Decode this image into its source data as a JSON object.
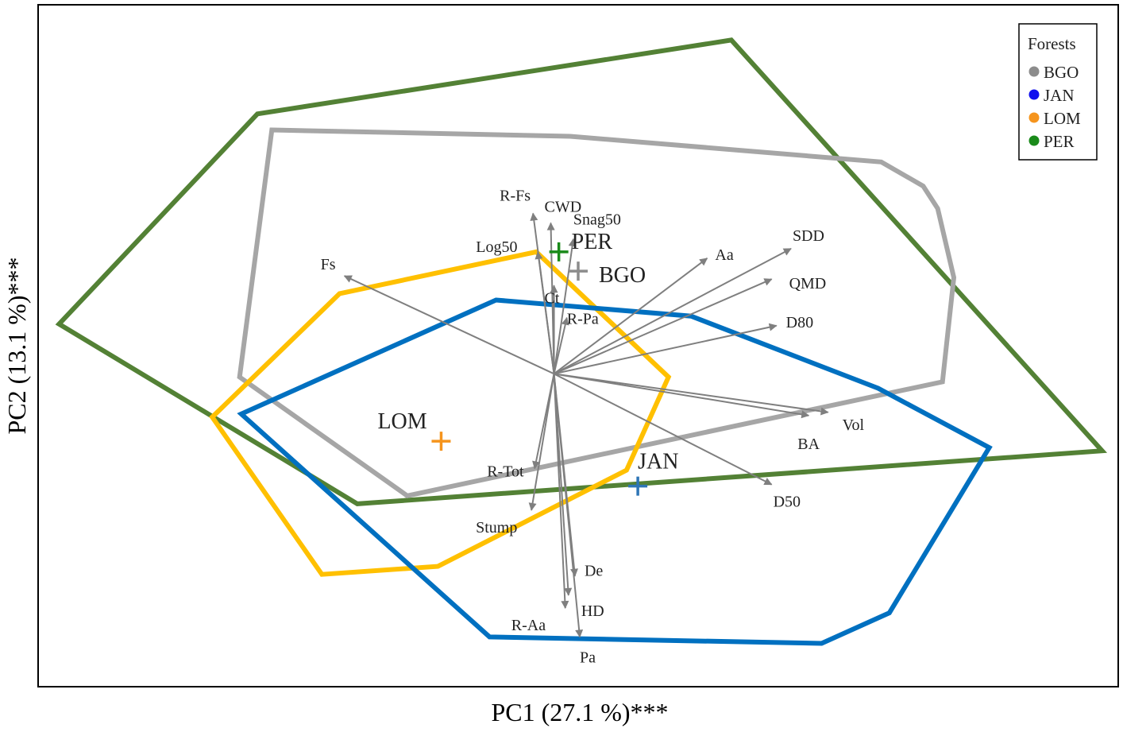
{
  "chart_data": {
    "type": "scatter",
    "subtype": "pca-biplot",
    "title": "",
    "xlabel": "PC1 (27.1 %)***",
    "ylabel": "PC2 (13.1 %)***",
    "xlim": [
      -3.2,
      3.5
    ],
    "ylim": [
      -1.95,
      2.3
    ],
    "grid": false,
    "legend": {
      "title": "Forests",
      "placement": "top-right",
      "entries": [
        {
          "name": "BGO",
          "color": "#8c8c8c"
        },
        {
          "name": "JAN",
          "color": "#1010ee"
        },
        {
          "name": "LOM",
          "color": "#f5941d"
        },
        {
          "name": "PER",
          "color": "#1a8a1a"
        }
      ]
    },
    "series": [
      {
        "name": "PER",
        "hull_color": "#538135",
        "centroid": [
          0.03,
          0.76
        ],
        "hull": [
          [
            -3.07,
            0.31
          ],
          [
            -1.84,
            1.62
          ],
          [
            1.1,
            2.08
          ],
          [
            3.4,
            -0.48
          ],
          [
            -1.22,
            -0.81
          ]
        ]
      },
      {
        "name": "BGO",
        "hull_color": "#a6a6a6",
        "centroid": [
          0.15,
          0.64
        ],
        "hull": [
          [
            -1.75,
            1.52
          ],
          [
            0.1,
            1.48
          ],
          [
            2.03,
            1.32
          ],
          [
            2.29,
            1.17
          ],
          [
            2.38,
            1.03
          ],
          [
            2.48,
            0.6
          ],
          [
            2.41,
            -0.05
          ],
          [
            -0.91,
            -0.76
          ],
          [
            -1.95,
            -0.02
          ]
        ]
      },
      {
        "name": "LOM",
        "hull_color": "#ffc000",
        "centroid": [
          -0.7,
          -0.42
        ],
        "hull": [
          [
            -1.33,
            0.5
          ],
          [
            -0.11,
            0.76
          ],
          [
            0.71,
            -0.02
          ],
          [
            0.45,
            -0.6
          ],
          [
            -0.72,
            -1.2
          ],
          [
            -1.44,
            -1.25
          ],
          [
            -2.12,
            -0.27
          ]
        ]
      },
      {
        "name": "JAN",
        "hull_color": "#0070c0",
        "centroid": [
          0.52,
          -0.7
        ],
        "hull": [
          [
            -0.36,
            0.46
          ],
          [
            0.85,
            0.36
          ],
          [
            2.01,
            -0.09
          ],
          [
            2.7,
            -0.46
          ],
          [
            2.08,
            -1.49
          ],
          [
            1.66,
            -1.68
          ],
          [
            -0.4,
            -1.64
          ],
          [
            -1.94,
            -0.25
          ]
        ]
      }
    ],
    "loadings_color": "#7f7f7f",
    "loadings": [
      {
        "name": "R-Fs",
        "x": -0.13,
        "y": 1.0
      },
      {
        "name": "CWD",
        "x": -0.02,
        "y": 0.94
      },
      {
        "name": "Snag50",
        "x": 0.12,
        "y": 0.84
      },
      {
        "name": "Log50",
        "x": -0.1,
        "y": 0.76
      },
      {
        "name": "Ct",
        "x": 0.0,
        "y": 0.55
      },
      {
        "name": "R-Pa",
        "x": 0.08,
        "y": 0.35
      },
      {
        "name": "Fs",
        "x": -1.3,
        "y": 0.61
      },
      {
        "name": "Aa",
        "x": 0.95,
        "y": 0.72
      },
      {
        "name": "SDD",
        "x": 1.47,
        "y": 0.78
      },
      {
        "name": "QMD",
        "x": 1.35,
        "y": 0.59
      },
      {
        "name": "D80",
        "x": 1.38,
        "y": 0.3
      },
      {
        "name": "Vol",
        "x": 1.7,
        "y": -0.24
      },
      {
        "name": "BA",
        "x": 1.58,
        "y": -0.26
      },
      {
        "name": "D50",
        "x": 1.35,
        "y": -0.69
      },
      {
        "name": "R-Tot",
        "x": -0.12,
        "y": -0.59
      },
      {
        "name": "Stump",
        "x": -0.14,
        "y": -0.85
      },
      {
        "name": "De",
        "x": 0.13,
        "y": -1.26
      },
      {
        "name": "HD",
        "x": 0.09,
        "y": -1.38
      },
      {
        "name": "R-Aa",
        "x": 0.07,
        "y": -1.46
      },
      {
        "name": "Pa",
        "x": 0.16,
        "y": -1.64
      }
    ]
  }
}
